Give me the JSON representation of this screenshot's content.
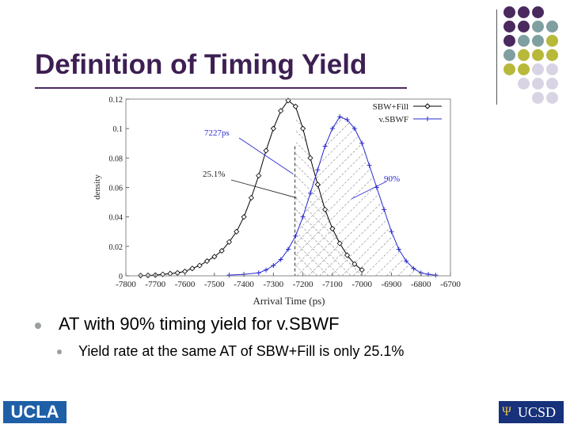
{
  "slide": {
    "title": "Definition of Timing Yield",
    "bullet1": "AT with 90% timing yield for v.SBWF",
    "bullet2": "Yield rate at the same AT of SBW+Fill is only 25.1%",
    "logo_left": "UCLA",
    "logo_right": "UCSD",
    "colors": {
      "title": "#3d1f52",
      "purple": "#4a2a5e",
      "teal": "#7f9fa0",
      "olive": "#b8b83a",
      "lavender": "#d8d4e4"
    }
  },
  "chart_data": {
    "type": "line",
    "xlabel": "Arrival Time (ps)",
    "ylabel": "density",
    "xlim": [
      -7800,
      -6700
    ],
    "ylim": [
      0,
      0.12
    ],
    "xticks": [
      -7800,
      -7700,
      -7600,
      -7500,
      -7400,
      -7300,
      -7200,
      -7100,
      -7000,
      -6900,
      -6800,
      -6700
    ],
    "yticks": [
      0,
      0.02,
      0.04,
      0.06,
      0.08,
      0.1,
      0.12
    ],
    "xtick_labels": [
      "-7800",
      "-7700",
      "-7600",
      "-7500",
      "-7400",
      "-7300",
      "-7200",
      "-7100",
      "-7000",
      "-6900",
      "-6800",
      "-6700"
    ],
    "ytick_labels": [
      "0",
      "0.02",
      "0.04",
      "0.06",
      "0.08",
      "0.1",
      "0.12"
    ],
    "legend_placement": "top-right",
    "series": [
      {
        "name": "SBW+Fill",
        "color": "#000000",
        "marker": "diamond",
        "x": [
          -7750,
          -7725,
          -7700,
          -7675,
          -7650,
          -7625,
          -7600,
          -7575,
          -7550,
          -7525,
          -7500,
          -7475,
          -7450,
          -7425,
          -7400,
          -7375,
          -7350,
          -7325,
          -7300,
          -7275,
          -7250,
          -7225,
          -7200,
          -7175,
          -7150,
          -7125,
          -7100,
          -7075,
          -7050,
          -7025,
          -7000
        ],
        "y": [
          0.0002,
          0.0003,
          0.0005,
          0.001,
          0.0015,
          0.002,
          0.003,
          0.005,
          0.007,
          0.01,
          0.013,
          0.017,
          0.023,
          0.03,
          0.04,
          0.053,
          0.068,
          0.085,
          0.1,
          0.112,
          0.119,
          0.115,
          0.1,
          0.08,
          0.062,
          0.045,
          0.032,
          0.022,
          0.014,
          0.008,
          0.004
        ]
      },
      {
        "name": "v.SBWF",
        "color": "#2a2ad0",
        "marker": "plus",
        "x": [
          -7450,
          -7400,
          -7350,
          -7325,
          -7300,
          -7275,
          -7250,
          -7225,
          -7200,
          -7175,
          -7150,
          -7125,
          -7100,
          -7075,
          -7050,
          -7025,
          -7000,
          -6975,
          -6950,
          -6925,
          -6900,
          -6875,
          -6850,
          -6825,
          -6800,
          -6775,
          -6750
        ],
        "y": [
          0.0005,
          0.001,
          0.002,
          0.004,
          0.007,
          0.011,
          0.018,
          0.027,
          0.04,
          0.056,
          0.072,
          0.088,
          0.1,
          0.108,
          0.106,
          0.1,
          0.09,
          0.075,
          0.06,
          0.045,
          0.03,
          0.018,
          0.01,
          0.005,
          0.002,
          0.001,
          0.0005
        ]
      }
    ],
    "annotations": [
      {
        "text": "7227ps",
        "x": -7227
      },
      {
        "text": "25.1%",
        "x": -7227
      },
      {
        "text": "90%",
        "x": -7227
      }
    ]
  }
}
